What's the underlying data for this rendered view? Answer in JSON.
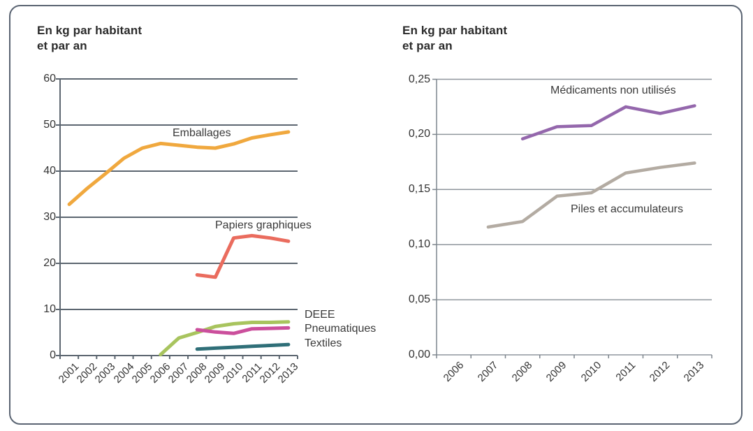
{
  "page": {
    "border_color": "#5A6472",
    "background_color": "#ffffff"
  },
  "chart_data": [
    {
      "type": "line",
      "title": "En kg par habitant et par an",
      "title_lines": [
        "En kg par habitant",
        "et par an"
      ],
      "categories": [
        "2001",
        "2002",
        "2003",
        "2004",
        "2005",
        "2006",
        "2007",
        "2008",
        "2009",
        "2010",
        "2011",
        "2012",
        "2013"
      ],
      "y_tick_labels": [
        "60",
        "50",
        "40",
        "30",
        "20",
        "10",
        "0"
      ],
      "ylim": [
        0,
        60
      ],
      "y_step": 10,
      "grid": "horizontal",
      "grid_color": "#5C6670",
      "axis_color": "#5C6670",
      "legend_position": "inline-labels",
      "series": [
        {
          "name": "Emballages",
          "color": "#F0A83E",
          "values": [
            32.8,
            36.3,
            39.5,
            42.8,
            45.0,
            46.0,
            45.6,
            45.2,
            45.0,
            45.9,
            47.2,
            47.9,
            48.5
          ]
        },
        {
          "name": "Papiers graphiques",
          "color": "#EA6C5E",
          "values": [
            null,
            null,
            null,
            null,
            null,
            null,
            null,
            17.5,
            17.0,
            25.5,
            26.0,
            25.5,
            24.8
          ]
        },
        {
          "name": "DEEE",
          "color": "#A8C45E",
          "values": [
            null,
            null,
            null,
            null,
            null,
            0.2,
            3.8,
            5.0,
            6.3,
            6.9,
            7.2,
            7.2,
            7.3
          ]
        },
        {
          "name": "Pneumatiques",
          "color": "#CB4F9C",
          "values": [
            null,
            null,
            null,
            null,
            null,
            null,
            null,
            5.6,
            5.1,
            4.8,
            5.8,
            5.9,
            6.0
          ]
        },
        {
          "name": "Textiles",
          "color": "#2F6F78",
          "values": [
            null,
            null,
            null,
            null,
            null,
            null,
            null,
            1.4,
            1.6,
            1.8,
            2.0,
            2.2,
            2.4
          ]
        }
      ]
    },
    {
      "type": "line",
      "title": "En kg par habitant et par an",
      "title_lines": [
        "En kg par habitant",
        "et par an"
      ],
      "categories": [
        "2006",
        "2007",
        "2008",
        "2009",
        "2010",
        "2011",
        "2012",
        "2013"
      ],
      "y_tick_labels": [
        "0,25",
        "0,20",
        "0,15",
        "0,10",
        "0,05",
        "0,00"
      ],
      "ylim": [
        0,
        0.25
      ],
      "y_step": 0.05,
      "grid": "horizontal",
      "grid_color": "#8F969D",
      "axis_color": "#7D858D",
      "legend_position": "inline-labels",
      "series": [
        {
          "name": "Médicaments non utilisés",
          "color": "#9467AC",
          "values": [
            null,
            null,
            0.196,
            0.207,
            0.208,
            0.225,
            0.219,
            0.226
          ]
        },
        {
          "name": "Piles et accumulateurs",
          "color": "#B3ABA2",
          "values": [
            null,
            0.116,
            0.121,
            0.144,
            0.147,
            0.165,
            0.17,
            0.174
          ]
        }
      ]
    }
  ]
}
